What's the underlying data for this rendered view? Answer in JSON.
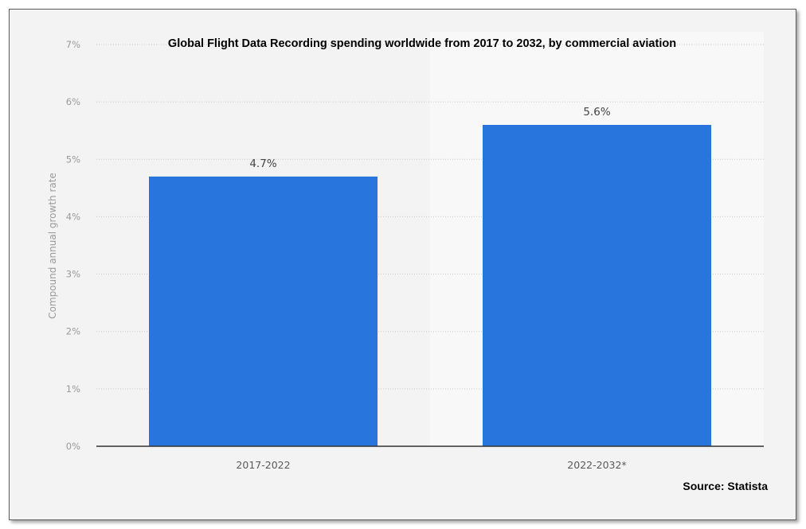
{
  "chart_data": {
    "type": "bar",
    "title": "Global Flight Data Recording spending worldwide from 2017 to 2032, by commercial aviation",
    "ylabel": "Compound annual growth rate",
    "xlabel": "",
    "categories": [
      "2017-2022",
      "2022-2032*"
    ],
    "values": [
      4.7,
      5.6
    ],
    "value_labels": [
      "4.7%",
      "5.6%"
    ],
    "ylim": [
      0,
      7
    ],
    "yticks": [
      0,
      1,
      2,
      3,
      4,
      5,
      6,
      7
    ],
    "ytick_labels": [
      "0%",
      "1%",
      "2%",
      "3%",
      "4%",
      "5%",
      "6%",
      "7%"
    ],
    "grid": true,
    "bar_color": "#2876dd",
    "highlighted_background_region": "right half (forecast period)"
  },
  "source": "Source: Statista"
}
